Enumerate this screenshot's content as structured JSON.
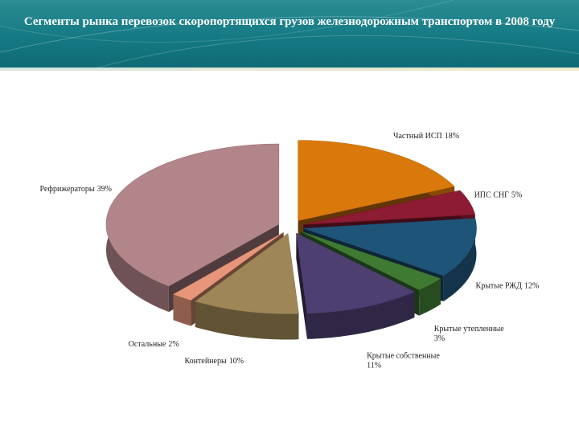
{
  "chart_data": {
    "type": "pie3d",
    "title": "Сегменты рынка перевозок скоропортящихся грузов железнодорожным транспортом в 2008 году",
    "categories": [
      "Частный ИСП",
      "ИПС СНГ",
      "Крытые РЖД",
      "Крытые утепленные",
      "Крытые собственные",
      "Контейнеры",
      "Остальные",
      "Рефрижераторы"
    ],
    "values": [
      18,
      5,
      12,
      3,
      11,
      10,
      2,
      39
    ],
    "value_labels": [
      "18%",
      "5%",
      "12%",
      "3%",
      "11%",
      "10%",
      "2%",
      "39%"
    ],
    "colors": [
      "#d9790c",
      "#8c1b33",
      "#1f5479",
      "#3f7a33",
      "#4e3f72",
      "#9e8656",
      "#e8967b",
      "#b2858a"
    ]
  }
}
